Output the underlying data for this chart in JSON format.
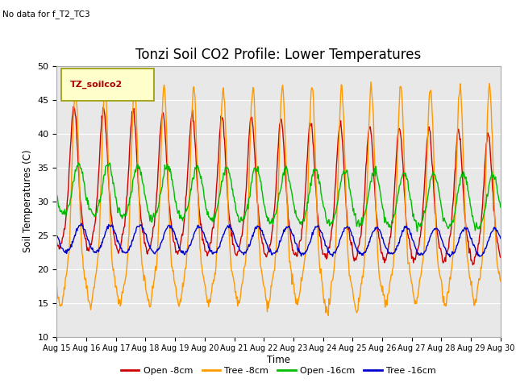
{
  "title": "Tonzi Soil CO2 Profile: Lower Temperatures",
  "no_data_text": "No data for f_T2_TC3",
  "legend_box_label": "TZ_soilco2",
  "ylabel": "Soil Temperatures (C)",
  "xlabel": "Time",
  "ylim": [
    10,
    50
  ],
  "yticks": [
    10,
    15,
    20,
    25,
    30,
    35,
    40,
    45,
    50
  ],
  "xtick_labels": [
    "Aug 15",
    "Aug 16",
    "Aug 17",
    "Aug 18",
    "Aug 19",
    "Aug 20",
    "Aug 21",
    "Aug 22",
    "Aug 23",
    "Aug 24",
    "Aug 25",
    "Aug 26",
    "Aug 27",
    "Aug 28",
    "Aug 29",
    "Aug 30"
  ],
  "lines": {
    "open8": {
      "label": "Open -8cm",
      "color": "#cc0000"
    },
    "tree8": {
      "label": "Tree -8cm",
      "color": "#ff9900"
    },
    "open16": {
      "label": "Open -16cm",
      "color": "#00bb00"
    },
    "tree16": {
      "label": "Tree -16cm",
      "color": "#0000cc"
    }
  },
  "bg_color": "#e8e8e8",
  "fig_bg": "#ffffff",
  "grid_color": "#ffffff",
  "title_fontsize": 12,
  "legend_box_bg": "#ffffcc",
  "legend_box_edge": "#999900"
}
